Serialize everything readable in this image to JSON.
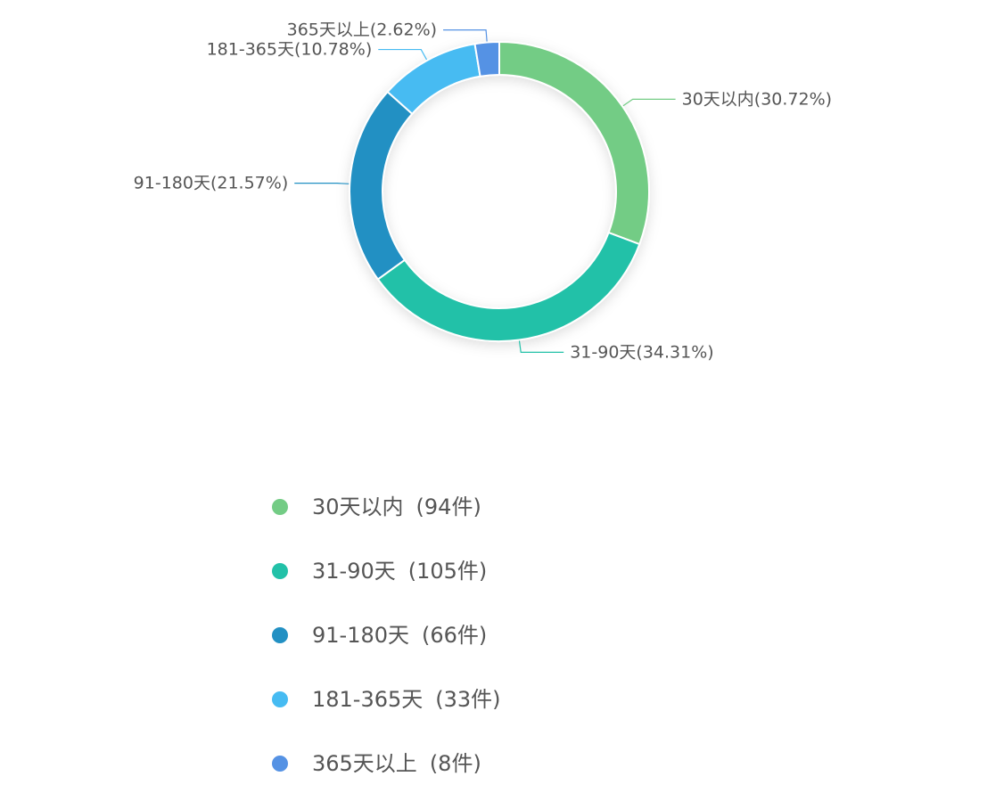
{
  "chart_data": {
    "type": "pie",
    "variant": "donut",
    "legend_position": "bottom",
    "colors": [
      "#73cc85",
      "#22c1a8",
      "#2290c3",
      "#46bbf2",
      "#5592e4"
    ],
    "slices": [
      {
        "name": "30天以内",
        "count": 94,
        "percent": 30.72,
        "label": "30天以内(30.72%)",
        "legend": "30天以内",
        "count_text": "(94件)"
      },
      {
        "name": "31-90天",
        "count": 105,
        "percent": 34.31,
        "label": "31-90天(34.31%)",
        "legend": "31-90天",
        "count_text": "(105件)"
      },
      {
        "name": "91-180天",
        "count": 66,
        "percent": 21.57,
        "label": "91-180天(21.57%)",
        "legend": "91-180天",
        "count_text": "(66件)"
      },
      {
        "name": "181-365天",
        "count": 33,
        "percent": 10.78,
        "label": "181-365天(10.78%)",
        "legend": "181-365天",
        "count_text": "(33件)"
      },
      {
        "name": "365天以上",
        "count": 8,
        "percent": 2.62,
        "label": "365天以上(2.62%)",
        "legend": "365天以上",
        "count_text": "(8件)"
      }
    ]
  }
}
